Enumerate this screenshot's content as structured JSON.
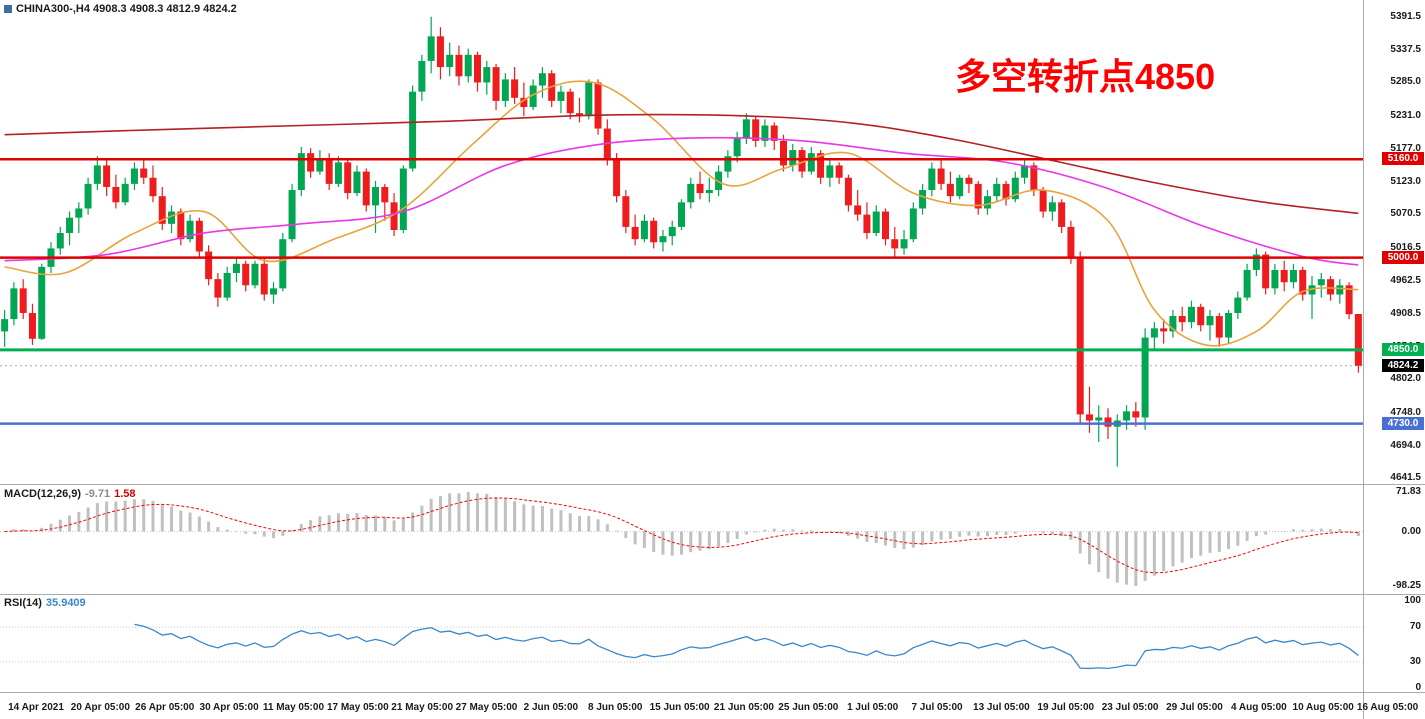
{
  "colors": {
    "up": "#00A651",
    "down": "#EE1C1C",
    "macd_hist": "#C0C0C0",
    "macd_signal": "#FF0000",
    "rsi": "#3A87C8",
    "separator": "#ABABAB"
  },
  "header": {
    "symbol": "CHINA300-",
    "timeframe": "H4",
    "open": 4908.3,
    "high": 4908.3,
    "low": 4812.9,
    "close": 4824.2,
    "display": "CHINA300-,H4 4908.3 4908.3 4812.9 4824.2"
  },
  "annotation": {
    "text": "多空转折点4850",
    "color": "#FE0000"
  },
  "price_axis_labels": [
    "5391.5",
    "5337.5",
    "5285.0",
    "5231.0",
    "5177.0",
    "5123.0",
    "5070.5",
    "5016.5",
    "4962.5",
    "4908.5",
    "4854.5",
    "4802.0",
    "4748.0",
    "4694.0",
    "4641.5"
  ],
  "level_lines": [
    {
      "label": "5160.0",
      "value": 5160.0,
      "color": "#E00000",
      "width": 2.5
    },
    {
      "label": "5000.0",
      "value": 5000.0,
      "color": "#E00000",
      "width": 2.5
    },
    {
      "label": "4850.0",
      "value": 4850.0,
      "color": "#00B050",
      "width": 3
    },
    {
      "label": "4730.0",
      "value": 4730.0,
      "color": "#4A6FD4",
      "width": 2.5
    }
  ],
  "current_price": {
    "label": "4824.2",
    "value": 4824.2,
    "color": "#000000"
  },
  "indicators": {
    "macd": {
      "title": "MACD(12,26,9)",
      "main_value": "-9.71",
      "signal_value": "1.58",
      "params": [
        12,
        26,
        9
      ],
      "axis_labels": [
        "71.83",
        "0.00",
        "-98.25"
      ]
    },
    "rsi": {
      "title": "RSI(14)",
      "value": "35.9409",
      "period": 14,
      "axis_labels": [
        "100",
        "70",
        "30",
        "0"
      ],
      "levels": [
        70,
        30
      ]
    }
  },
  "chart_data": {
    "type": "candlestick",
    "title": "CHINA300- H4",
    "ylim": [
      4641.5,
      5391.5
    ],
    "x_labels": [
      "14 Apr 2021",
      "20 Apr 05:00",
      "26 Apr 05:00",
      "30 Apr 05:00",
      "11 May 05:00",
      "17 May 05:00",
      "21 May 05:00",
      "27 May 05:00",
      "2 Jun 05:00",
      "8 Jun 05:00",
      "15 Jun 05:00",
      "21 Jun 05:00",
      "25 Jun 05:00",
      "1 Jul 05:00",
      "7 Jul 05:00",
      "13 Jul 05:00",
      "19 Jul 05:00",
      "23 Jul 05:00",
      "29 Jul 05:00",
      "4 Aug 05:00",
      "10 Aug 05:00",
      "16 Aug 05:00"
    ],
    "candles": [
      [
        4880,
        4915,
        4855,
        4900
      ],
      [
        4900,
        4960,
        4890,
        4950
      ],
      [
        4950,
        4965,
        4900,
        4910
      ],
      [
        4910,
        4925,
        4858,
        4868
      ],
      [
        4868,
        4990,
        4866,
        4985
      ],
      [
        4985,
        5025,
        4975,
        5015
      ],
      [
        5015,
        5050,
        5005,
        5040
      ],
      [
        5040,
        5075,
        5020,
        5065
      ],
      [
        5065,
        5090,
        5040,
        5080
      ],
      [
        5080,
        5130,
        5070,
        5120
      ],
      [
        5120,
        5165,
        5110,
        5150
      ],
      [
        5150,
        5160,
        5100,
        5115
      ],
      [
        5115,
        5135,
        5080,
        5090
      ],
      [
        5090,
        5130,
        5085,
        5120
      ],
      [
        5120,
        5155,
        5110,
        5145
      ],
      [
        5145,
        5160,
        5120,
        5130
      ],
      [
        5130,
        5150,
        5090,
        5100
      ],
      [
        5100,
        5115,
        5045,
        5055
      ],
      [
        5055,
        5085,
        5040,
        5075
      ],
      [
        5075,
        5080,
        5020,
        5030
      ],
      [
        5030,
        5070,
        5025,
        5060
      ],
      [
        5060,
        5065,
        5000,
        5010
      ],
      [
        5010,
        5020,
        4955,
        4965
      ],
      [
        4965,
        4975,
        4920,
        4935
      ],
      [
        4935,
        4985,
        4930,
        4975
      ],
      [
        4975,
        5000,
        4960,
        4990
      ],
      [
        4990,
        4995,
        4945,
        4955
      ],
      [
        4955,
        4995,
        4950,
        4990
      ],
      [
        4990,
        5000,
        4930,
        4940
      ],
      [
        4940,
        4960,
        4925,
        4950
      ],
      [
        4950,
        5040,
        4945,
        5030
      ],
      [
        5030,
        5120,
        5025,
        5110
      ],
      [
        5110,
        5180,
        5100,
        5170
      ],
      [
        5170,
        5178,
        5130,
        5140
      ],
      [
        5140,
        5175,
        5135,
        5160
      ],
      [
        5160,
        5170,
        5110,
        5120
      ],
      [
        5120,
        5165,
        5115,
        5155
      ],
      [
        5155,
        5160,
        5095,
        5105
      ],
      [
        5105,
        5150,
        5100,
        5140
      ],
      [
        5140,
        5145,
        5075,
        5085
      ],
      [
        5085,
        5125,
        5040,
        5115
      ],
      [
        5115,
        5120,
        5060,
        5090
      ],
      [
        5090,
        5105,
        5035,
        5045
      ],
      [
        5045,
        5150,
        5040,
        5145
      ],
      [
        5145,
        5280,
        5140,
        5270
      ],
      [
        5270,
        5330,
        5255,
        5320
      ],
      [
        5320,
        5392,
        5300,
        5360
      ],
      [
        5360,
        5375,
        5290,
        5310
      ],
      [
        5310,
        5350,
        5295,
        5330
      ],
      [
        5330,
        5345,
        5280,
        5295
      ],
      [
        5295,
        5340,
        5285,
        5330
      ],
      [
        5330,
        5335,
        5270,
        5285
      ],
      [
        5285,
        5320,
        5265,
        5310
      ],
      [
        5310,
        5315,
        5240,
        5255
      ],
      [
        5255,
        5300,
        5245,
        5290
      ],
      [
        5290,
        5310,
        5250,
        5260
      ],
      [
        5260,
        5285,
        5230,
        5245
      ],
      [
        5245,
        5290,
        5240,
        5280
      ],
      [
        5280,
        5310,
        5260,
        5300
      ],
      [
        5300,
        5305,
        5245,
        5255
      ],
      [
        5255,
        5280,
        5235,
        5270
      ],
      [
        5270,
        5275,
        5225,
        5235
      ],
      [
        5235,
        5260,
        5220,
        5230
      ],
      [
        5230,
        5290,
        5225,
        5285
      ],
      [
        5285,
        5290,
        5200,
        5210
      ],
      [
        5210,
        5225,
        5150,
        5160
      ],
      [
        5160,
        5170,
        5090,
        5100
      ],
      [
        5100,
        5110,
        5040,
        5050
      ],
      [
        5050,
        5070,
        5020,
        5030
      ],
      [
        5030,
        5070,
        5025,
        5060
      ],
      [
        5060,
        5065,
        5015,
        5025
      ],
      [
        5025,
        5045,
        5010,
        5035
      ],
      [
        5035,
        5060,
        5020,
        5050
      ],
      [
        5050,
        5095,
        5045,
        5090
      ],
      [
        5090,
        5130,
        5080,
        5120
      ],
      [
        5120,
        5140,
        5095,
        5105
      ],
      [
        5105,
        5130,
        5090,
        5110
      ],
      [
        5110,
        5150,
        5100,
        5140
      ],
      [
        5140,
        5175,
        5130,
        5165
      ],
      [
        5165,
        5205,
        5155,
        5195
      ],
      [
        5195,
        5235,
        5185,
        5225
      ],
      [
        5225,
        5230,
        5180,
        5190
      ],
      [
        5190,
        5225,
        5180,
        5215
      ],
      [
        5215,
        5220,
        5175,
        5190
      ],
      [
        5190,
        5200,
        5140,
        5150
      ],
      [
        5150,
        5185,
        5140,
        5175
      ],
      [
        5175,
        5180,
        5130,
        5140
      ],
      [
        5140,
        5180,
        5135,
        5170
      ],
      [
        5170,
        5175,
        5120,
        5130
      ],
      [
        5130,
        5160,
        5115,
        5150
      ],
      [
        5150,
        5155,
        5120,
        5130
      ],
      [
        5130,
        5135,
        5075,
        5085
      ],
      [
        5085,
        5110,
        5060,
        5070
      ],
      [
        5070,
        5090,
        5030,
        5040
      ],
      [
        5040,
        5085,
        5035,
        5075
      ],
      [
        5075,
        5080,
        5020,
        5030
      ],
      [
        5030,
        5050,
        5000,
        5015
      ],
      [
        5015,
        5045,
        5005,
        5030
      ],
      [
        5030,
        5090,
        5025,
        5080
      ],
      [
        5080,
        5120,
        5070,
        5110
      ],
      [
        5110,
        5155,
        5100,
        5145
      ],
      [
        5145,
        5160,
        5110,
        5120
      ],
      [
        5120,
        5140,
        5090,
        5100
      ],
      [
        5100,
        5135,
        5095,
        5130
      ],
      [
        5130,
        5135,
        5105,
        5120
      ],
      [
        5120,
        5125,
        5070,
        5080
      ],
      [
        5080,
        5110,
        5070,
        5100
      ],
      [
        5100,
        5130,
        5090,
        5120
      ],
      [
        5120,
        5125,
        5085,
        5095
      ],
      [
        5095,
        5140,
        5090,
        5130
      ],
      [
        5130,
        5160,
        5120,
        5150
      ],
      [
        5150,
        5155,
        5100,
        5110
      ],
      [
        5110,
        5115,
        5065,
        5075
      ],
      [
        5075,
        5100,
        5060,
        5090
      ],
      [
        5090,
        5095,
        5040,
        5050
      ],
      [
        5050,
        5060,
        4990,
        5000
      ],
      [
        5000,
        5010,
        4730,
        4745
      ],
      [
        4745,
        4790,
        4715,
        4735
      ],
      [
        4735,
        4760,
        4700,
        4740
      ],
      [
        4740,
        4755,
        4705,
        4725
      ],
      [
        4725,
        4745,
        4660,
        4735
      ],
      [
        4735,
        4760,
        4720,
        4750
      ],
      [
        4750,
        4765,
        4725,
        4740
      ],
      [
        4740,
        4885,
        4720,
        4870
      ],
      [
        4870,
        4895,
        4850,
        4885
      ],
      [
        4885,
        4900,
        4860,
        4880
      ],
      [
        4880,
        4915,
        4870,
        4905
      ],
      [
        4905,
        4920,
        4880,
        4895
      ],
      [
        4895,
        4930,
        4885,
        4920
      ],
      [
        4920,
        4925,
        4880,
        4890
      ],
      [
        4890,
        4915,
        4865,
        4905
      ],
      [
        4905,
        4910,
        4855,
        4870
      ],
      [
        4870,
        4915,
        4860,
        4910
      ],
      [
        4910,
        4945,
        4900,
        4935
      ],
      [
        4935,
        4990,
        4930,
        4980
      ],
      [
        4980,
        5015,
        4970,
        5005
      ],
      [
        5005,
        5010,
        4940,
        4950
      ],
      [
        4950,
        4990,
        4940,
        4980
      ],
      [
        4980,
        4995,
        4945,
        4960
      ],
      [
        4960,
        4990,
        4950,
        4980
      ],
      [
        4980,
        4985,
        4930,
        4940
      ],
      [
        4940,
        4970,
        4900,
        4955
      ],
      [
        4955,
        4975,
        4935,
        4965
      ],
      [
        4965,
        4970,
        4930,
        4940
      ],
      [
        4940,
        4965,
        4925,
        4955
      ],
      [
        4955,
        4960,
        4900,
        4908
      ],
      [
        4908.3,
        4908.3,
        4812.9,
        4824.2
      ]
    ],
    "overlays": [
      {
        "name": "ma-fast-orange",
        "color": "#E8A33D",
        "points": [
          [
            0,
            4985
          ],
          [
            6.5,
            4975
          ],
          [
            14,
            5040
          ],
          [
            21.5,
            5075
          ],
          [
            28,
            4995
          ],
          [
            35.5,
            5030
          ],
          [
            43,
            5080
          ],
          [
            50.5,
            5185
          ],
          [
            57,
            5265
          ],
          [
            63.5,
            5285
          ],
          [
            70,
            5225
          ],
          [
            77.5,
            5120
          ],
          [
            84,
            5145
          ],
          [
            91,
            5170
          ],
          [
            98,
            5105
          ],
          [
            105,
            5085
          ],
          [
            112,
            5110
          ],
          [
            119,
            5060
          ],
          [
            124,
            4915
          ],
          [
            129.5,
            4858
          ],
          [
            135,
            4880
          ],
          [
            140,
            4945
          ],
          [
            146,
            4948
          ]
        ]
      },
      {
        "name": "ma-mid-magenta",
        "color": "#E838E8",
        "points": [
          [
            0,
            4995
          ],
          [
            11,
            5005
          ],
          [
            21.5,
            5040
          ],
          [
            32,
            5055
          ],
          [
            43,
            5075
          ],
          [
            54,
            5150
          ],
          [
            64.5,
            5185
          ],
          [
            75.5,
            5195
          ],
          [
            86,
            5190
          ],
          [
            97,
            5170
          ],
          [
            108,
            5155
          ],
          [
            118.5,
            5115
          ],
          [
            129.5,
            5050
          ],
          [
            140,
            5002
          ],
          [
            146,
            4988
          ]
        ]
      },
      {
        "name": "ma-slow-darkred",
        "color": "#B22222",
        "points": [
          [
            0,
            5200
          ],
          [
            16,
            5208
          ],
          [
            32,
            5215
          ],
          [
            48,
            5222
          ],
          [
            64.5,
            5232
          ],
          [
            81,
            5230
          ],
          [
            92,
            5218
          ],
          [
            102.5,
            5192
          ],
          [
            113,
            5158
          ],
          [
            124,
            5122
          ],
          [
            135,
            5092
          ],
          [
            146,
            5072
          ]
        ]
      }
    ]
  }
}
